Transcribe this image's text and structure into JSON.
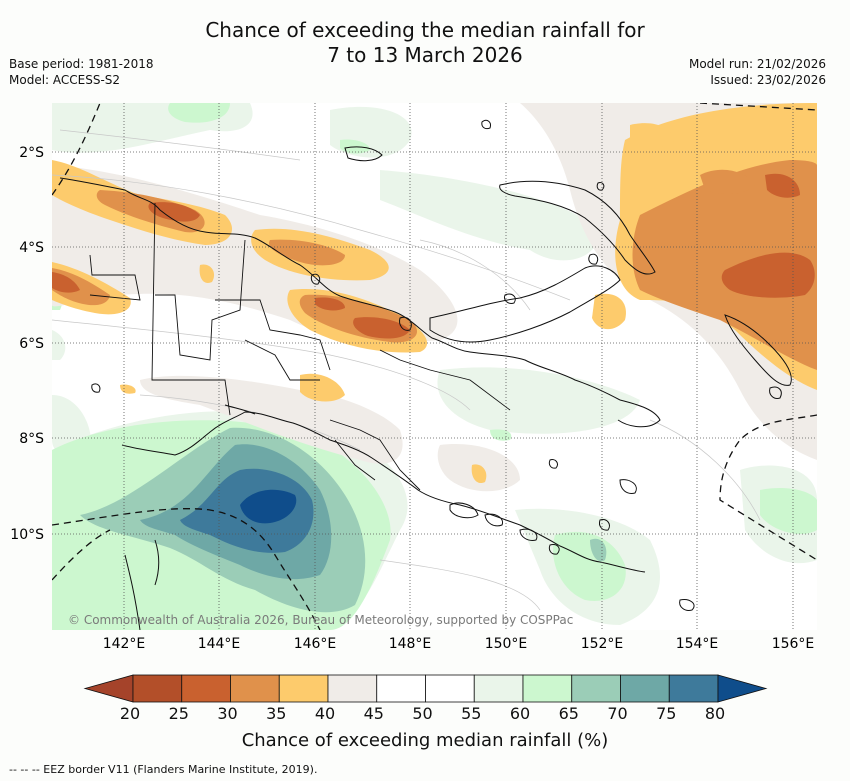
{
  "title": {
    "line1": "Chance of exceeding the median rainfall for",
    "line2": "7 to 13 March 2026"
  },
  "meta": {
    "base_period": "Base period: 1981-2018",
    "model": "Model: ACCESS-S2",
    "model_run": "Model run: 21/02/2026",
    "issued": "Issued: 23/02/2026"
  },
  "axes": {
    "lat_labels": [
      "2°S",
      "4°S",
      "6°S",
      "8°S",
      "10°S"
    ],
    "lon_labels": [
      "142°E",
      "144°E",
      "146°E",
      "148°E",
      "150°E",
      "152°E",
      "154°E",
      "156°E"
    ]
  },
  "colorbar": {
    "title": "Chance of exceeding median rainfall (%)",
    "tick_labels": [
      "20",
      "25",
      "30",
      "35",
      "40",
      "45",
      "50",
      "55",
      "60",
      "65",
      "70",
      "75",
      "80"
    ],
    "colors": [
      "#a5432a",
      "#b34f29",
      "#c9612f",
      "#e0914b",
      "#fdcb6c",
      "#f0ece8",
      "#ffffff",
      "#ffffff",
      "#eaf5ea",
      "#ccf7cf",
      "#9bcdb7",
      "#6ea8a6",
      "#3e7a9b",
      "#0f4d8b"
    ]
  },
  "copyright": "© Commonwealth of Australia 2026, Bureau of Meteorology, supported by COSPPac",
  "footnote": "--  --  -- EEZ border V11 (Flanders Marine Institute, 2019)."
}
